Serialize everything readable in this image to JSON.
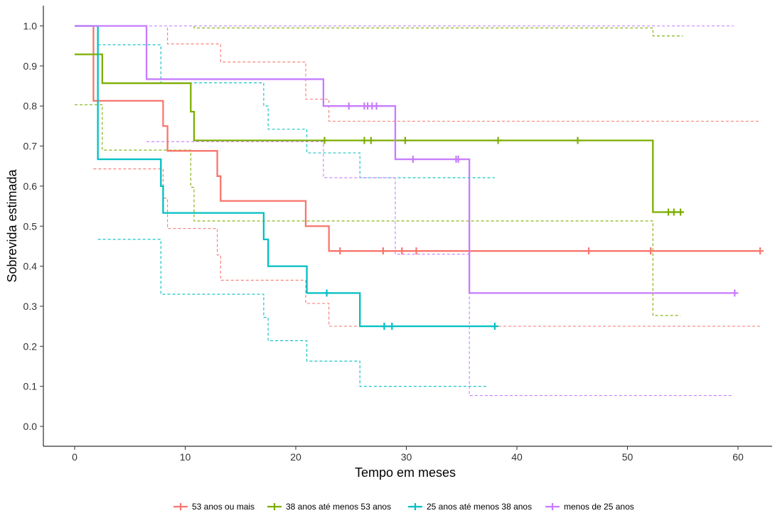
{
  "chart_data": {
    "type": "line",
    "subtype": "kaplan-meier-step",
    "xlabel": "Tempo em meses",
    "ylabel": "Sobrevida estimada",
    "xlim": [
      0,
      62
    ],
    "ylim": [
      0,
      1
    ],
    "x_ticks": [
      0,
      10,
      20,
      30,
      40,
      50,
      60
    ],
    "y_ticks": [
      "0.0",
      "0.1",
      "0.2",
      "0.3",
      "0.4",
      "0.5",
      "0.6",
      "0.7",
      "0.8",
      "0.9",
      "1.0"
    ],
    "grid": false,
    "legend_position": "bottom",
    "series": [
      {
        "name": "53 anos ou mais",
        "color": "#F8766D",
        "steps": [
          [
            0,
            1.0
          ],
          [
            1.7,
            0.813
          ],
          [
            8.0,
            0.75
          ],
          [
            8.4,
            0.688
          ],
          [
            12.9,
            0.625
          ],
          [
            13.2,
            0.563
          ],
          [
            20.9,
            0.5
          ],
          [
            23.0,
            0.438
          ],
          [
            62.0,
            0.438
          ]
        ],
        "censored": [
          [
            24.0,
            0.438
          ],
          [
            27.9,
            0.438
          ],
          [
            29.6,
            0.438
          ],
          [
            30.9,
            0.438
          ],
          [
            46.5,
            0.438
          ],
          [
            52.1,
            0.438
          ],
          [
            62.0,
            0.438
          ]
        ],
        "ci_upper": [
          [
            0,
            1.0
          ],
          [
            8.4,
            1.0
          ],
          [
            8.4,
            0.955
          ],
          [
            13.2,
            0.955
          ],
          [
            13.2,
            0.91
          ],
          [
            20.9,
            0.91
          ],
          [
            20.9,
            0.817
          ],
          [
            23.0,
            0.817
          ],
          [
            23.0,
            0.762
          ],
          [
            62.0,
            0.762
          ]
        ],
        "ci_lower": [
          [
            1.7,
            0.643
          ],
          [
            8.0,
            0.643
          ],
          [
            8.0,
            0.57
          ],
          [
            8.4,
            0.57
          ],
          [
            8.4,
            0.494
          ],
          [
            12.9,
            0.494
          ],
          [
            12.9,
            0.428
          ],
          [
            13.2,
            0.428
          ],
          [
            13.2,
            0.365
          ],
          [
            20.9,
            0.365
          ],
          [
            20.9,
            0.307
          ],
          [
            23.0,
            0.307
          ],
          [
            23.0,
            0.25
          ],
          [
            62.0,
            0.25
          ]
        ]
      },
      {
        "name": "38 anos até menos 53 anos",
        "color": "#7CAE00",
        "steps": [
          [
            0,
            0.929
          ],
          [
            2.5,
            0.857
          ],
          [
            10.5,
            0.786
          ],
          [
            10.8,
            0.714
          ],
          [
            52.3,
            0.535
          ],
          [
            55.0,
            0.535
          ]
        ],
        "censored": [
          [
            22.6,
            0.714
          ],
          [
            26.2,
            0.714
          ],
          [
            26.8,
            0.714
          ],
          [
            29.9,
            0.714
          ],
          [
            38.3,
            0.714
          ],
          [
            45.5,
            0.714
          ],
          [
            53.7,
            0.535
          ],
          [
            54.2,
            0.535
          ],
          [
            54.8,
            0.535
          ]
        ],
        "ci_upper": [
          [
            0,
            1.0
          ],
          [
            10.8,
            1.0
          ],
          [
            10.8,
            0.995
          ],
          [
            52.3,
            0.995
          ],
          [
            52.3,
            0.975
          ],
          [
            55.0,
            0.975
          ]
        ],
        "ci_lower": [
          [
            0,
            0.803
          ],
          [
            2.5,
            0.803
          ],
          [
            2.5,
            0.69
          ],
          [
            10.5,
            0.69
          ],
          [
            10.5,
            0.597
          ],
          [
            10.8,
            0.597
          ],
          [
            10.8,
            0.513
          ],
          [
            52.3,
            0.513
          ],
          [
            52.3,
            0.277
          ],
          [
            54.8,
            0.277
          ]
        ]
      },
      {
        "name": "25 anos até menos 38 anos",
        "color": "#00BFC4",
        "steps": [
          [
            0,
            1.0
          ],
          [
            2.1,
            0.667
          ],
          [
            7.8,
            0.6
          ],
          [
            8.0,
            0.533
          ],
          [
            17.1,
            0.467
          ],
          [
            17.5,
            0.4
          ],
          [
            21.0,
            0.333
          ],
          [
            25.8,
            0.25
          ],
          [
            38.0,
            0.25
          ]
        ],
        "censored": [
          [
            22.8,
            0.333
          ],
          [
            28.0,
            0.25
          ],
          [
            28.7,
            0.25
          ],
          [
            38.0,
            0.25
          ]
        ],
        "ci_upper": [
          [
            2.1,
            0.953
          ],
          [
            7.8,
            0.953
          ],
          [
            7.8,
            0.858
          ],
          [
            17.1,
            0.858
          ],
          [
            17.1,
            0.8
          ],
          [
            17.5,
            0.8
          ],
          [
            17.5,
            0.742
          ],
          [
            21.0,
            0.742
          ],
          [
            21.0,
            0.683
          ],
          [
            25.8,
            0.683
          ],
          [
            25.8,
            0.621
          ],
          [
            38.0,
            0.621
          ]
        ],
        "ci_lower": [
          [
            2.1,
            0.467
          ],
          [
            7.8,
            0.467
          ],
          [
            7.8,
            0.33
          ],
          [
            17.1,
            0.33
          ],
          [
            17.1,
            0.272
          ],
          [
            17.5,
            0.272
          ],
          [
            17.5,
            0.214
          ],
          [
            21.0,
            0.214
          ],
          [
            21.0,
            0.163
          ],
          [
            25.8,
            0.163
          ],
          [
            25.8,
            0.1
          ],
          [
            37.4,
            0.1
          ]
        ]
      },
      {
        "name": "menos de 25 anos",
        "color": "#C77CFF",
        "steps": [
          [
            0,
            1.0
          ],
          [
            6.5,
            0.867
          ],
          [
            22.5,
            0.8
          ],
          [
            29.0,
            0.667
          ],
          [
            35.7,
            0.333
          ],
          [
            59.7,
            0.333
          ]
        ],
        "censored": [
          [
            24.8,
            0.8
          ],
          [
            26.2,
            0.8
          ],
          [
            26.5,
            0.8
          ],
          [
            26.9,
            0.8
          ],
          [
            27.3,
            0.8
          ],
          [
            30.6,
            0.667
          ],
          [
            34.5,
            0.667
          ],
          [
            34.7,
            0.667
          ],
          [
            59.7,
            0.333
          ]
        ],
        "ci_upper": [
          [
            0,
            1.0
          ],
          [
            59.6,
            1.0
          ]
        ],
        "ci_lower": [
          [
            6.5,
            0.711
          ],
          [
            22.5,
            0.711
          ],
          [
            22.5,
            0.621
          ],
          [
            29.0,
            0.621
          ],
          [
            29.0,
            0.43
          ],
          [
            35.7,
            0.43
          ],
          [
            35.7,
            0.077
          ],
          [
            59.6,
            0.077
          ]
        ]
      }
    ]
  }
}
